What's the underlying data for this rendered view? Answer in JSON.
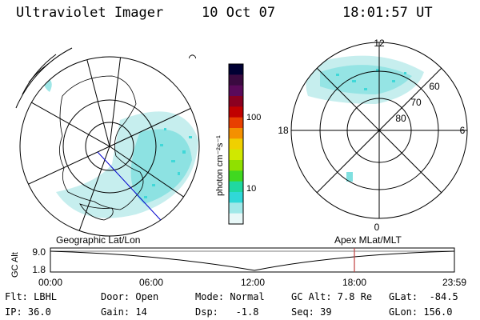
{
  "header": {
    "title": "Ultraviolet Imager",
    "date": "10 Oct 07",
    "time": "18:01:57 UT"
  },
  "left_map": {
    "label": "Geographic Lat/Lon",
    "corner_mark": "⌒"
  },
  "colorbar": {
    "unit_label": "photon cm⁻²s⁻¹",
    "ticks": [
      "100",
      "10"
    ],
    "colors": [
      "#000033",
      "#3a0a40",
      "#5a0a5a",
      "#8a0020",
      "#c00000",
      "#e84000",
      "#f49000",
      "#f0d000",
      "#d0e800",
      "#90e000",
      "#40d820",
      "#20d8a0",
      "#30d8d8",
      "#a0e8e8",
      "#e8f8f8"
    ]
  },
  "right_map": {
    "label": "Apex MLat/MLT",
    "mlt_labels": {
      "top": "12",
      "left": "18",
      "right": "6",
      "bottom": "0"
    },
    "lat_labels": [
      "60",
      "70",
      "80"
    ]
  },
  "timeline": {
    "ylabel": "GC Alt",
    "y_ticks": [
      "9.0",
      "1.8"
    ],
    "x_ticks": [
      "00:00",
      "06:00",
      "12:00",
      "18:00",
      "23:59"
    ],
    "marker_time": "18:00",
    "marker_color": "#c04040"
  },
  "info": {
    "flt": "Flt: LBHL",
    "ip": "IP: 36.0",
    "door": "Door: Open",
    "gain": "Gain: 14",
    "mode": "Mode: Normal",
    "dsp": "Dsp:   -1.8",
    "gc_alt": "GC Alt: 7.8 Re",
    "seq": "Seq: 39",
    "glat": "GLat:  -84.5",
    "glon": "GLon: 156.0"
  }
}
